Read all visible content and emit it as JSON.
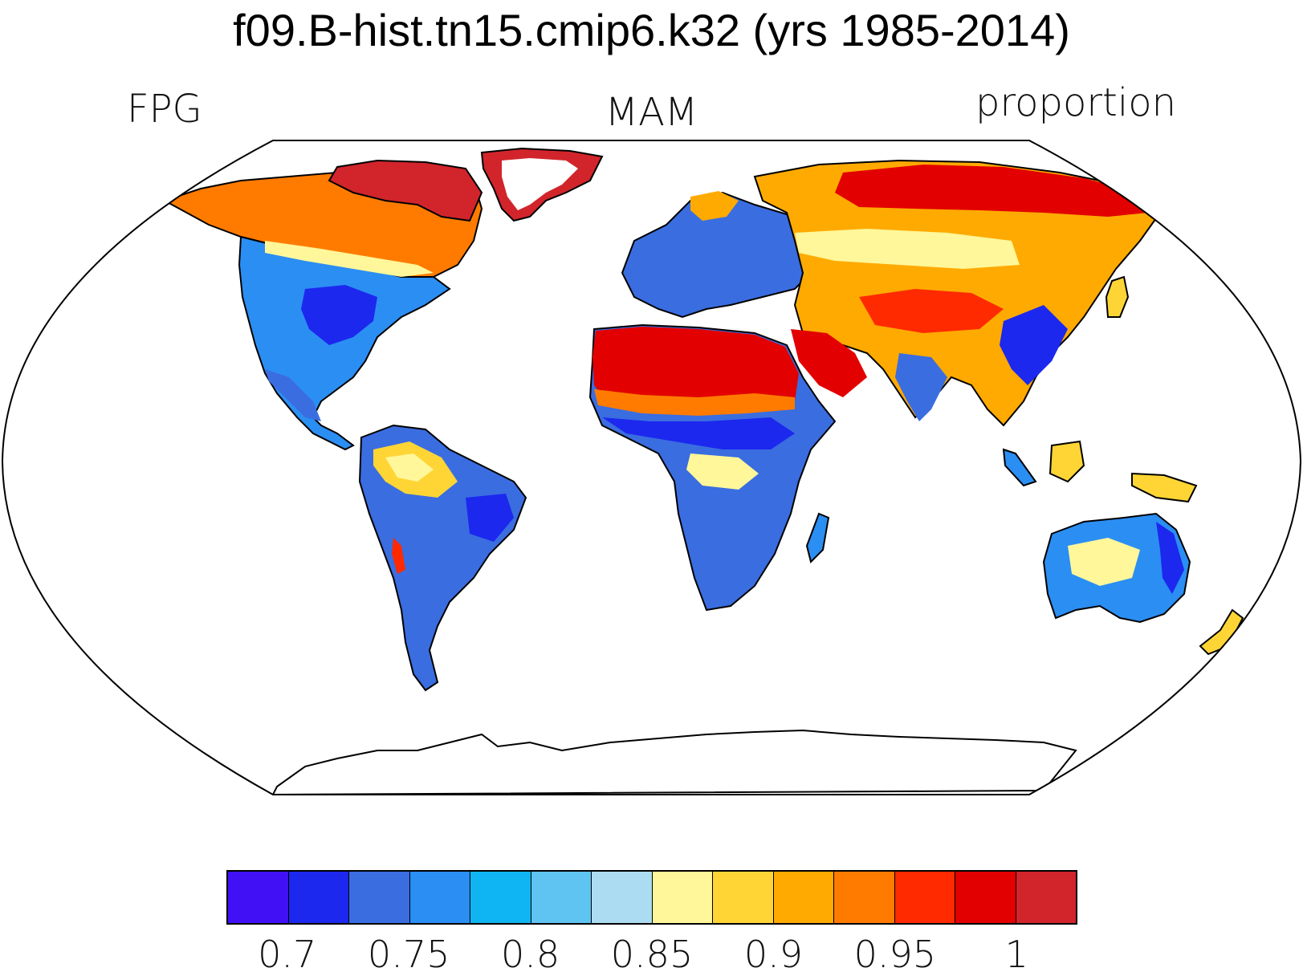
{
  "title": "f09.B-hist.tn15.cmip6.k32 (yrs 1985-2014)",
  "left_label": "FPG",
  "center_label": "MAM",
  "right_label": "proportion",
  "colorbar": {
    "colors": [
      "#4110f5",
      "#1c28ee",
      "#3a6de0",
      "#2b8ef3",
      "#0fb5f2",
      "#5fc4f1",
      "#acdcf2",
      "#fff799",
      "#ffd536",
      "#ffaa00",
      "#ff7b00",
      "#ff2a00",
      "#e20000",
      "#d1252b"
    ],
    "tick_labels": [
      "0.7",
      "0.75",
      "0.8",
      "0.85",
      "0.9",
      "0.95",
      "1"
    ]
  },
  "map": {
    "projection": "Robinson",
    "variable": "FPG",
    "regions": [
      {
        "name": "Greenland",
        "color": "#d1252b"
      },
      {
        "name": "Canadian Arctic",
        "color": "#e20000"
      },
      {
        "name": "Alaska",
        "color": "#ff7b00"
      },
      {
        "name": "Eastern North America",
        "color": "#1c28ee"
      },
      {
        "name": "Western North America",
        "color": "#2b8ef3"
      },
      {
        "name": "Amazon",
        "color": "#ffd536"
      },
      {
        "name": "Southern South America",
        "color": "#3a6de0"
      },
      {
        "name": "Sahara and Arabia",
        "color": "#e20000"
      },
      {
        "name": "Sahel",
        "color": "#1c28ee"
      },
      {
        "name": "Southern Africa",
        "color": "#3a6de0"
      },
      {
        "name": "Europe",
        "color": "#3a6de0"
      },
      {
        "name": "Siberia",
        "color": "#e20000"
      },
      {
        "name": "Central Asia",
        "color": "#ffd536"
      },
      {
        "name": "Tibetan Plateau",
        "color": "#ff2a00"
      },
      {
        "name": "South and Southeast Asia",
        "color": "#1c28ee"
      },
      {
        "name": "Australia",
        "color": "#2b8ef3"
      },
      {
        "name": "New Guinea",
        "color": "#ffd536"
      },
      {
        "name": "Antarctica",
        "color": "#ffffff"
      }
    ]
  }
}
